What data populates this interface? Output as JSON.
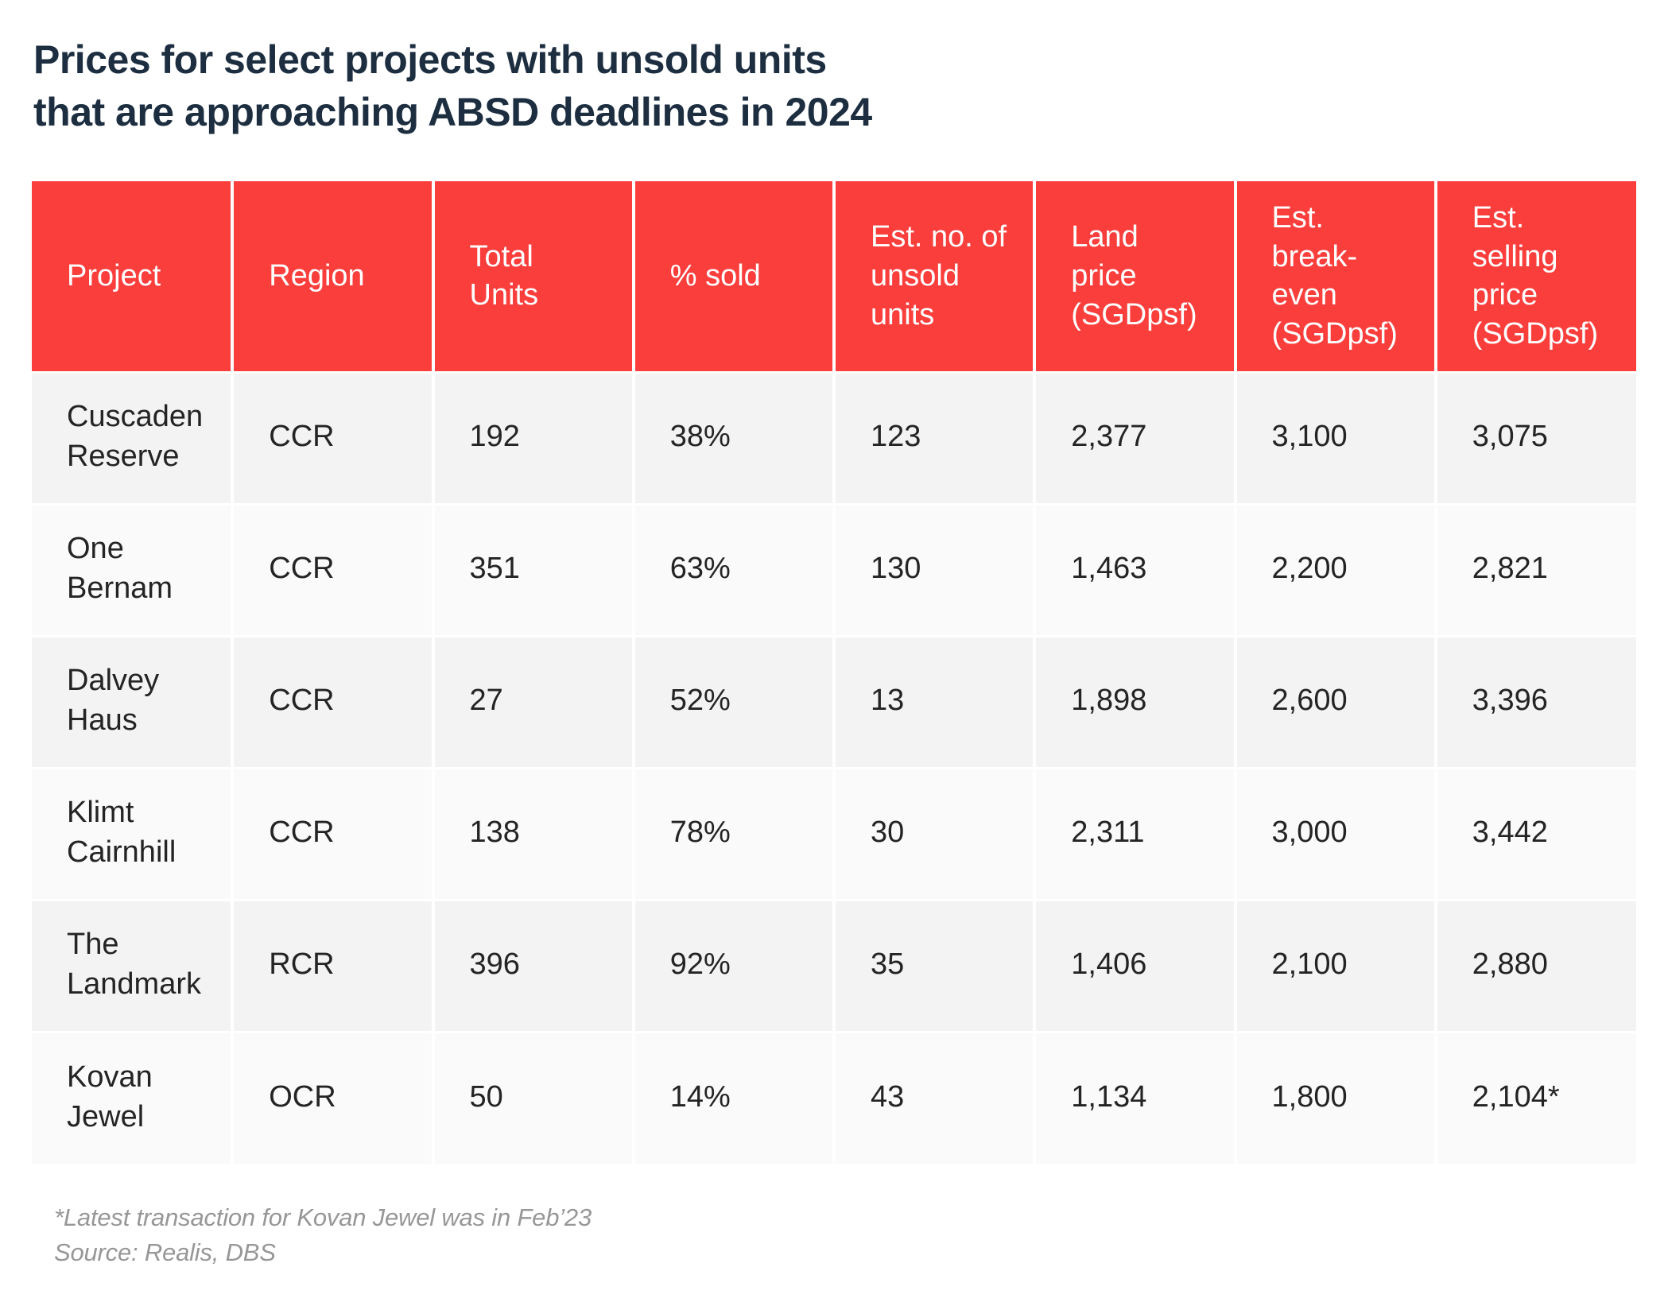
{
  "title": {
    "text": "Prices for select projects with unsold units\nthat are approaching ABSD deadlines in 2024"
  },
  "colors": {
    "header_red": "#fa3e3c",
    "title_navy": "#1c2e40",
    "row_odd": "#f3f3f4",
    "row_even": "#fafafb",
    "footnote_gray": "#979797"
  },
  "table": {
    "columns": [
      "Project",
      "Region",
      "Total\nUnits",
      "% sold",
      "Est. no. of\nunsold\nunits",
      "Land\nprice\n(SGDpsf)",
      "Est.\nbreak-\neven\n(SGDpsf)",
      "Est.\nselling\nprice\n(SGDpsf)"
    ],
    "rows": [
      {
        "cells": [
          "Cuscaden\nReserve",
          "CCR",
          "192",
          "38%",
          "123",
          "2,377",
          "3,100",
          "3,075"
        ]
      },
      {
        "cells": [
          "One\nBernam",
          "CCR",
          "351",
          "63%",
          "130",
          "1,463",
          "2,200",
          "2,821"
        ]
      },
      {
        "cells": [
          "Dalvey\nHaus",
          "CCR",
          "27",
          "52%",
          "13",
          "1,898",
          "2,600",
          "3,396"
        ]
      },
      {
        "cells": [
          "Klimt\nCairnhill",
          "CCR",
          "138",
          "78%",
          "30",
          "2,311",
          "3,000",
          "3,442"
        ]
      },
      {
        "cells": [
          "The\nLandmark",
          "RCR",
          "396",
          "92%",
          "35",
          "1,406",
          "2,100",
          "2,880"
        ]
      },
      {
        "cells": [
          "Kovan\nJewel",
          "OCR",
          "50",
          "14%",
          "43",
          "1,134",
          "1,800",
          "2,104*"
        ]
      }
    ]
  },
  "footnotes": {
    "line1": "*Latest transaction for Kovan Jewel was in Feb’23",
    "line2": "Source: Realis, DBS"
  },
  "chart_data": {
    "type": "table",
    "title": "Prices for select projects with unsold units that are approaching ABSD deadlines in 2024",
    "columns": [
      "Project",
      "Region",
      "Total Units",
      "% sold",
      "Est. no. of unsold units",
      "Land price (SGDpsf)",
      "Est. break-even (SGDpsf)",
      "Est. selling price (SGDpsf)"
    ],
    "rows": [
      [
        "Cuscaden Reserve",
        "CCR",
        192,
        "38%",
        123,
        2377,
        3100,
        3075
      ],
      [
        "One Bernam",
        "CCR",
        351,
        "63%",
        130,
        1463,
        2200,
        2821
      ],
      [
        "Dalvey Haus",
        "CCR",
        27,
        "52%",
        13,
        1898,
        2600,
        3396
      ],
      [
        "Klimt Cairnhill",
        "CCR",
        138,
        "78%",
        30,
        2311,
        3000,
        3442
      ],
      [
        "The Landmark",
        "RCR",
        396,
        "92%",
        35,
        1406,
        2100,
        2880
      ],
      [
        "Kovan Jewel",
        "OCR",
        50,
        "14%",
        43,
        1134,
        1800,
        "2,104*"
      ]
    ],
    "notes": [
      "*Latest transaction for Kovan Jewel was in Feb’23",
      "Source: Realis, DBS"
    ]
  }
}
